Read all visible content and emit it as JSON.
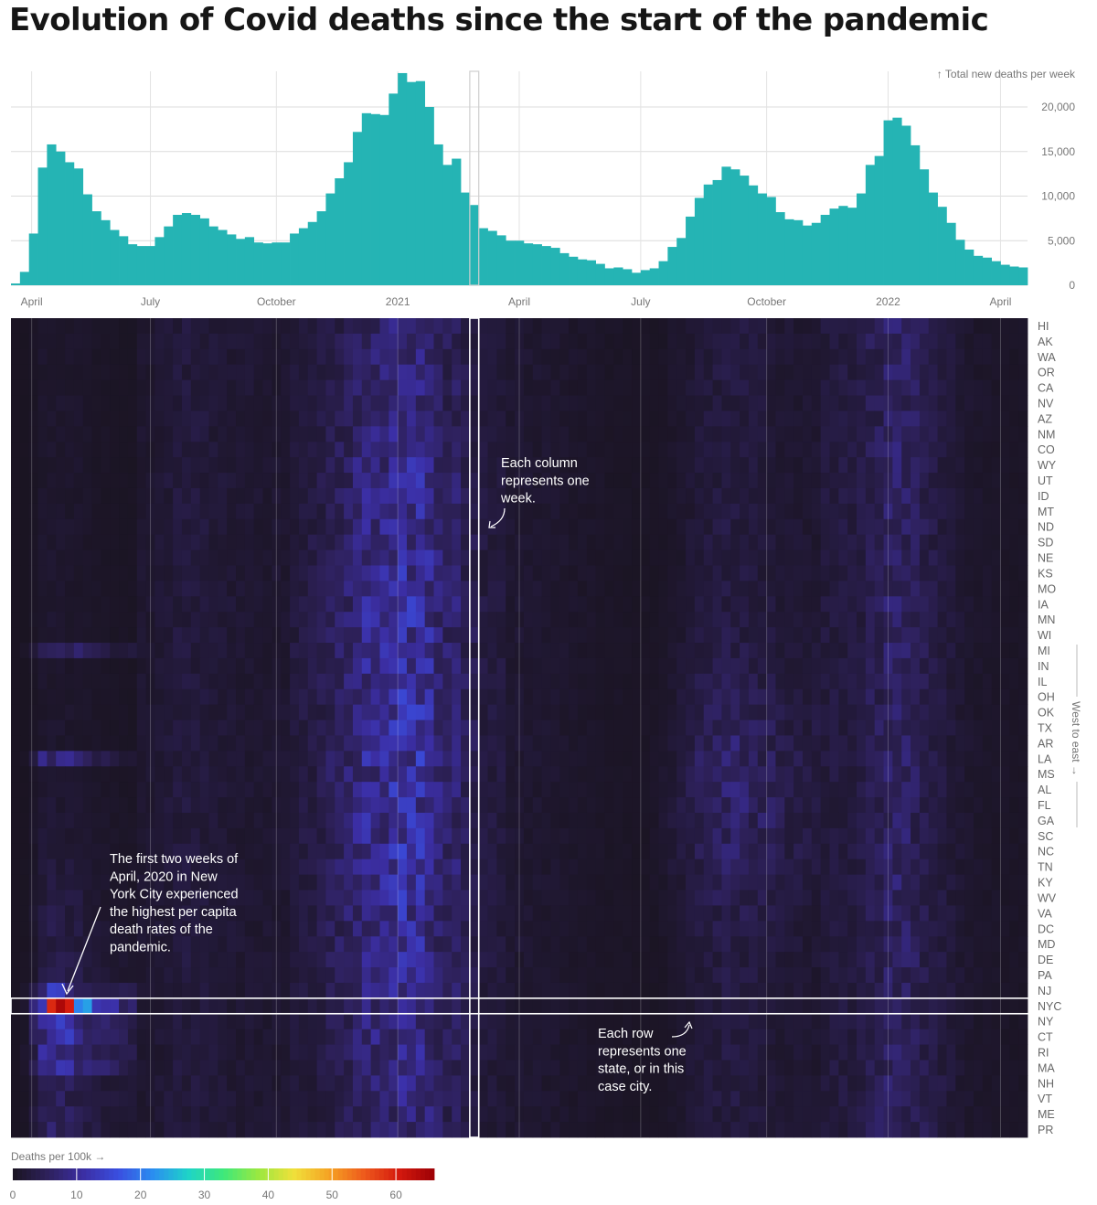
{
  "title": "Evolution of Covid deaths since the start of the pandemic",
  "chart_data": [
    {
      "type": "bar",
      "name": "weekly-deaths",
      "ylabel": "↑ Total new deaths per week",
      "ylim": [
        0,
        24000
      ],
      "yticks": [
        "0",
        "5,000",
        "10,000",
        "15,000",
        "20,000"
      ],
      "ytick_values": [
        0,
        5000,
        10000,
        15000,
        20000
      ],
      "xticks": [
        "April",
        "July",
        "October",
        "2021",
        "April",
        "July",
        "October",
        "2022",
        "April"
      ],
      "xtick_weeks": [
        2.3,
        15.5,
        29.5,
        43,
        56.5,
        70,
        84,
        97.5,
        110
      ],
      "grid": true,
      "color": "#25b4b4",
      "values": [
        200,
        1500,
        5800,
        13200,
        15800,
        15000,
        13800,
        13100,
        10200,
        8300,
        7300,
        6200,
        5500,
        4600,
        4400,
        4400,
        5400,
        6600,
        7900,
        8100,
        7900,
        7500,
        6600,
        6200,
        5700,
        5200,
        5400,
        4800,
        4700,
        4800,
        4800,
        5800,
        6400,
        7100,
        8300,
        10300,
        12000,
        13800,
        17200,
        19300,
        19200,
        19100,
        21500,
        23800,
        22800,
        22900,
        20000,
        15800,
        13500,
        14200,
        10400,
        9000,
        6400,
        6100,
        5600,
        5000,
        5000,
        4700,
        4600,
        4400,
        4200,
        3600,
        3200,
        2900,
        2800,
        2400,
        1900,
        2000,
        1800,
        1400,
        1700,
        1900,
        2700,
        4300,
        5300,
        7700,
        9800,
        11300,
        11800,
        13300,
        13000,
        12300,
        11200,
        10300,
        9900,
        8200,
        7400,
        7300,
        6700,
        7000,
        7900,
        8600,
        8900,
        8700,
        10300,
        13500,
        14500,
        18500,
        18800,
        17900,
        15700,
        13000,
        10400,
        8800,
        7000,
        5100,
        4000,
        3300,
        3100,
        2700,
        2300,
        2100,
        2000
      ]
    },
    {
      "type": "heatmap",
      "name": "deaths-per-100k-by-state",
      "rows": [
        "HI",
        "AK",
        "WA",
        "OR",
        "CA",
        "NV",
        "AZ",
        "NM",
        "CO",
        "WY",
        "UT",
        "ID",
        "MT",
        "ND",
        "SD",
        "NE",
        "KS",
        "MO",
        "IA",
        "MN",
        "WI",
        "MI",
        "IN",
        "IL",
        "OH",
        "OK",
        "TX",
        "AR",
        "LA",
        "MS",
        "AL",
        "FL",
        "GA",
        "SC",
        "NC",
        "TN",
        "KY",
        "WV",
        "VA",
        "DC",
        "MD",
        "DE",
        "PA",
        "NJ",
        "NYC",
        "NY",
        "CT",
        "RI",
        "MA",
        "NH",
        "VT",
        "ME",
        "PR"
      ],
      "columns": "weeks (same x axis as the bar chart)",
      "row_axis_label": "West to east →",
      "highlight_row": "NYC",
      "highlight_week": 51,
      "colorbar": {
        "label": "Deaths per 100k →",
        "ticks": [
          "0",
          "10",
          "20",
          "30",
          "40",
          "50",
          "60"
        ],
        "tick_values": [
          0,
          10,
          20,
          30,
          40,
          50,
          60
        ],
        "max": 66,
        "colors": [
          "#1a1421",
          "#2e215c",
          "#3b2ea3",
          "#3a4ee0",
          "#2a8ef0",
          "#1ed4c8",
          "#3ee87a",
          "#9be840",
          "#f0e03a",
          "#f5a324",
          "#ee5a1c",
          "#d4190e",
          "#9c0005"
        ]
      }
    }
  ],
  "annotations": {
    "nyc": [
      "The first two weeks of",
      "April, 2020 in New",
      "York City experienced",
      "the highest per capita",
      "death rates of the",
      "pandemic."
    ],
    "column": [
      "Each column",
      "represents one",
      "week."
    ],
    "row": [
      "Each row",
      "represents one",
      "state, or in this",
      "case city."
    ]
  }
}
